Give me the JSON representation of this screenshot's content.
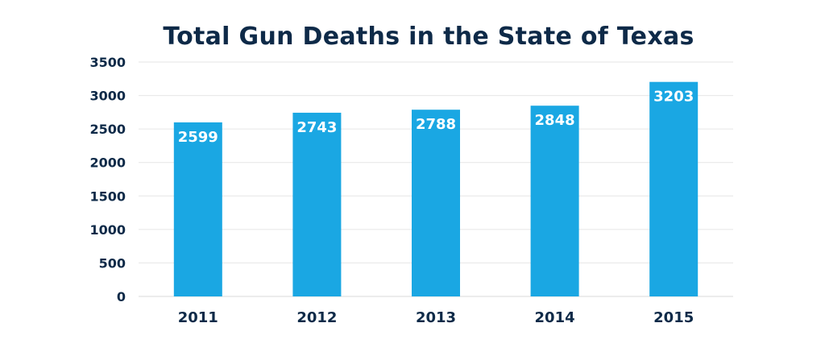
{
  "chart_data": {
    "type": "bar",
    "title": "Total Gun Deaths in the State of Texas",
    "categories": [
      "2011",
      "2012",
      "2013",
      "2014",
      "2015"
    ],
    "values": [
      2599,
      2743,
      2788,
      2848,
      3203
    ],
    "value_labels": [
      "2599",
      "2743",
      "2788",
      "2848",
      "3203"
    ],
    "ylim": [
      0,
      3500
    ],
    "yticks": [
      0,
      500,
      1000,
      1500,
      2000,
      2500,
      3000,
      3500
    ],
    "ytick_labels": [
      "0",
      "500",
      "1000",
      "1500",
      "2000",
      "2500",
      "3000",
      "3500"
    ],
    "grid": true,
    "bar_color": "#1aa7e3",
    "text_color": "#0e2a48",
    "grid_color": "#e6e6e6"
  }
}
